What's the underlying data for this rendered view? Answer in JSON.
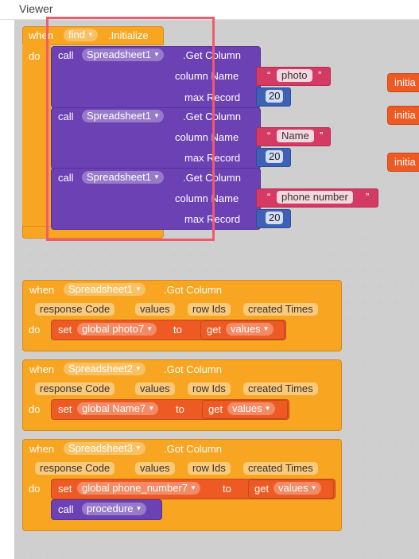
{
  "viewer_title": "Viewer",
  "block1": {
    "when": "when",
    "component": "find",
    "event": ".Initialize",
    "do": "do",
    "calls": [
      {
        "call": "call",
        "component": "Spreadsheet1",
        "method": ".Get Column",
        "p1": "column Name",
        "p2": "max Record",
        "value": "photo",
        "number": "20"
      },
      {
        "call": "call",
        "component": "Spreadsheet1",
        "method": ".Get Column",
        "p1": "column Name",
        "p2": "max Record",
        "value": "Name",
        "number": "20"
      },
      {
        "call": "call",
        "component": "Spreadsheet1",
        "method": ".Get Column",
        "p1": "column Name",
        "p2": "max Record",
        "value": "phone number",
        "number": "20"
      }
    ]
  },
  "side_blocks": [
    "initia",
    "initia",
    "initia"
  ],
  "events": [
    {
      "when": "when",
      "component": "Spreadsheet1",
      "event": ".Got Column",
      "params": [
        "response Code",
        "values",
        "row Ids",
        "created Times"
      ],
      "do": "do",
      "set": "set",
      "var": "global photo7",
      "to": "to",
      "get": "get",
      "getvar": "values",
      "call": null
    },
    {
      "when": "when",
      "component": "Spreadsheet2",
      "event": ".Got Column",
      "params": [
        "response Code",
        "values",
        "row Ids",
        "created Times"
      ],
      "do": "do",
      "set": "set",
      "var": "global Name7",
      "to": "to",
      "get": "get",
      "getvar": "values",
      "call": null
    },
    {
      "when": "when",
      "component": "Spreadsheet3",
      "event": ".Got Column",
      "params": [
        "response Code",
        "values",
        "row Ids",
        "created Times"
      ],
      "do": "do",
      "set": "set",
      "var": "global phone_number7",
      "to": "to",
      "get": "get",
      "getvar": "values",
      "call": {
        "call": "call",
        "proc": "procedure"
      }
    }
  ],
  "colors": {
    "event": "#f8a621",
    "call": "#6b41b4",
    "text": "#d43a63",
    "number": "#3c61b7",
    "set": "#ee5a24",
    "highlight": "#f05a6e"
  }
}
